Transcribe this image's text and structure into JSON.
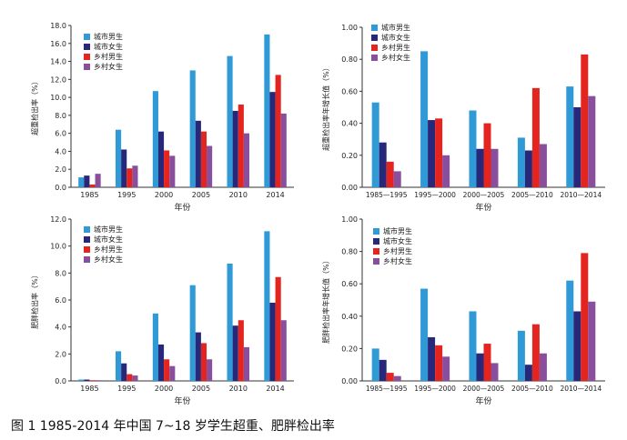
{
  "caption": "图 1 1985-2014 年中国 7~18 岁学生超重、肥胖检出率",
  "colors": {
    "urban_boys": "#2f9ad6",
    "urban_girls": "#27287a",
    "rural_boys": "#e3241f",
    "rural_girls": "#8a4f9c",
    "axis": "#333333"
  },
  "chart_data": [
    {
      "type": "bar",
      "title": "",
      "xlabel": "年份",
      "ylabel": "超重检出率（%）",
      "categories": [
        "1985",
        "1995",
        "2000",
        "2005",
        "2010",
        "2014"
      ],
      "yticks": [
        "0.0",
        "2.0",
        "4.0",
        "6.0",
        "8.0",
        "10.0",
        "12.0",
        "14.0",
        "16.0",
        "18.0"
      ],
      "ylim": [
        0,
        18
      ],
      "legend": [
        "城市男生",
        "城市女生",
        "乡村男生",
        "乡村女生"
      ],
      "series": [
        {
          "name": "城市男生",
          "values": [
            1.1,
            6.4,
            10.7,
            13.0,
            14.6,
            17.0
          ]
        },
        {
          "name": "城市女生",
          "values": [
            1.3,
            4.2,
            6.2,
            7.4,
            8.5,
            10.6
          ]
        },
        {
          "name": "乡村男生",
          "values": [
            0.3,
            2.1,
            4.1,
            6.2,
            9.2,
            12.5
          ]
        },
        {
          "name": "乡村女生",
          "values": [
            1.5,
            2.4,
            3.5,
            4.6,
            6.0,
            8.2
          ]
        }
      ]
    },
    {
      "type": "bar",
      "title": "",
      "xlabel": "年份",
      "ylabel": "超重检出率年增长值（%）",
      "categories": [
        "1985—1995",
        "1995—2000",
        "2000—2005",
        "2005—2010",
        "2010—2014"
      ],
      "yticks": [
        "0.00",
        "0.20",
        "0.40",
        "0.60",
        "0.80",
        "1.00"
      ],
      "ylim": [
        0,
        1.0
      ],
      "legend": [
        "城市男生",
        "城市女生",
        "乡村男生",
        "乡村女生"
      ],
      "series": [
        {
          "name": "城市男生",
          "values": [
            0.53,
            0.85,
            0.48,
            0.31,
            0.63
          ]
        },
        {
          "name": "城市女生",
          "values": [
            0.28,
            0.42,
            0.24,
            0.23,
            0.5
          ]
        },
        {
          "name": "乡村男生",
          "values": [
            0.16,
            0.43,
            0.4,
            0.62,
            0.83
          ]
        },
        {
          "name": "乡村女生",
          "values": [
            0.1,
            0.2,
            0.24,
            0.27,
            0.57
          ]
        }
      ]
    },
    {
      "type": "bar",
      "title": "",
      "xlabel": "年份",
      "ylabel": "肥胖检出率（%）",
      "categories": [
        "1985",
        "1995",
        "2000",
        "2005",
        "2010",
        "2014"
      ],
      "yticks": [
        "0.0",
        "2.0",
        "4.0",
        "6.0",
        "8.0",
        "10.0",
        "12.0"
      ],
      "ylim": [
        0,
        12
      ],
      "legend": [
        "城市男生",
        "城市女生",
        "乡村男生",
        "乡村女生"
      ],
      "series": [
        {
          "name": "城市男生",
          "values": [
            0.1,
            2.2,
            5.0,
            7.1,
            8.7,
            11.1
          ]
        },
        {
          "name": "城市女生",
          "values": [
            0.1,
            1.3,
            2.7,
            3.6,
            4.1,
            5.8
          ]
        },
        {
          "name": "乡村男生",
          "values": [
            0.05,
            0.5,
            1.6,
            2.8,
            4.5,
            7.7
          ]
        },
        {
          "name": "乡村女生",
          "values": [
            0.05,
            0.4,
            1.1,
            1.6,
            2.5,
            4.5
          ]
        }
      ]
    },
    {
      "type": "bar",
      "title": "",
      "xlabel": "年份",
      "ylabel": "肥胖检出率年增长值（%）",
      "categories": [
        "1985—1995",
        "1995—2000",
        "2000—2005",
        "2005—2010",
        "2010—2014"
      ],
      "yticks": [
        "0.00",
        "0.20",
        "0.40",
        "0.60",
        "0.80",
        "1.00"
      ],
      "ylim": [
        0,
        1.0
      ],
      "legend": [
        "城市男生",
        "城市女生",
        "乡村男生",
        "乡村女生"
      ],
      "series": [
        {
          "name": "城市男生",
          "values": [
            0.2,
            0.57,
            0.43,
            0.31,
            0.62
          ]
        },
        {
          "name": "城市女生",
          "values": [
            0.13,
            0.27,
            0.17,
            0.1,
            0.43
          ]
        },
        {
          "name": "乡村男生",
          "values": [
            0.05,
            0.22,
            0.23,
            0.35,
            0.79
          ]
        },
        {
          "name": "乡村女生",
          "values": [
            0.03,
            0.15,
            0.11,
            0.17,
            0.49
          ]
        }
      ]
    }
  ]
}
